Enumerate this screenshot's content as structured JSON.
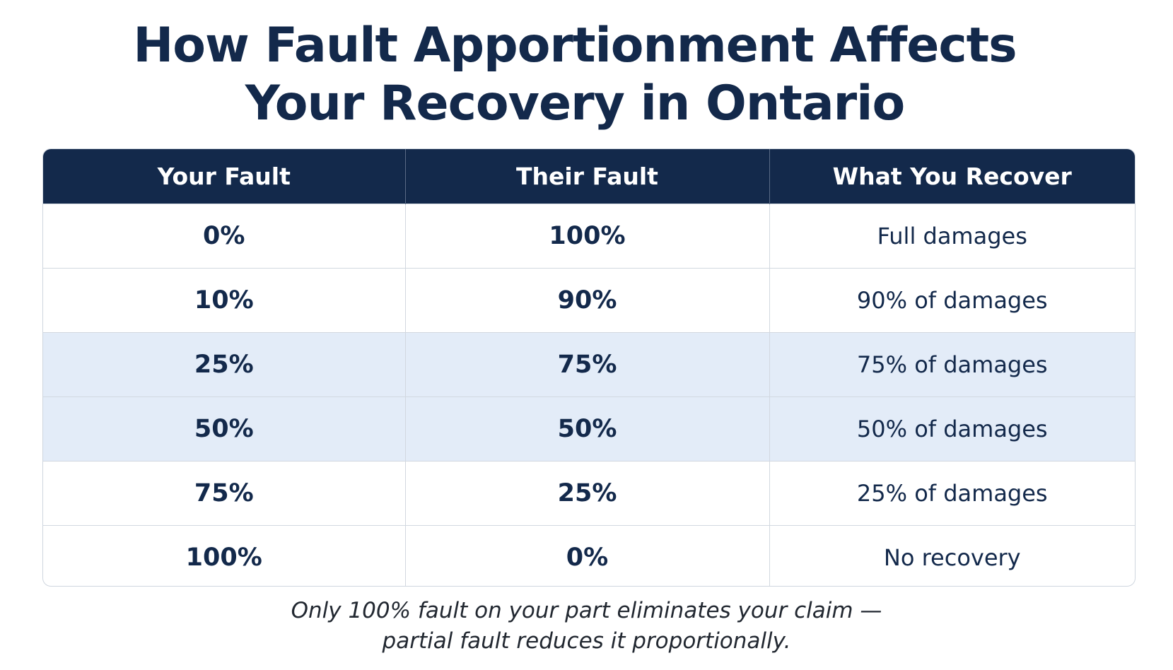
{
  "title": {
    "line1": "How Fault Apportionment Affects",
    "line2": "Your Recovery in Ontario"
  },
  "table": {
    "headers": [
      "Your Fault",
      "Their Fault",
      "What You Recover"
    ],
    "rows": [
      {
        "your_fault": "0%",
        "their_fault": "100%",
        "recover": "Full damages",
        "highlighted": false
      },
      {
        "your_fault": "10%",
        "their_fault": "90%",
        "recover": "90% of damages",
        "highlighted": false
      },
      {
        "your_fault": "25%",
        "their_fault": "75%",
        "recover": "75% of damages",
        "highlighted": true
      },
      {
        "your_fault": "50%",
        "their_fault": "50%",
        "recover": "50% of damages",
        "highlighted": true
      },
      {
        "your_fault": "75%",
        "their_fault": "25%",
        "recover": "25% of damages",
        "highlighted": false
      },
      {
        "your_fault": "100%",
        "their_fault": "0%",
        "recover": "No recovery",
        "highlighted": false
      }
    ]
  },
  "note": {
    "line1": "Only 100% fault on your part eliminates your claim —",
    "line2": "partial fault reduces it proportionally."
  },
  "colors": {
    "header_bg": "#13294b",
    "text": "#13294b",
    "highlight_row_bg": "#e3ecf8"
  }
}
